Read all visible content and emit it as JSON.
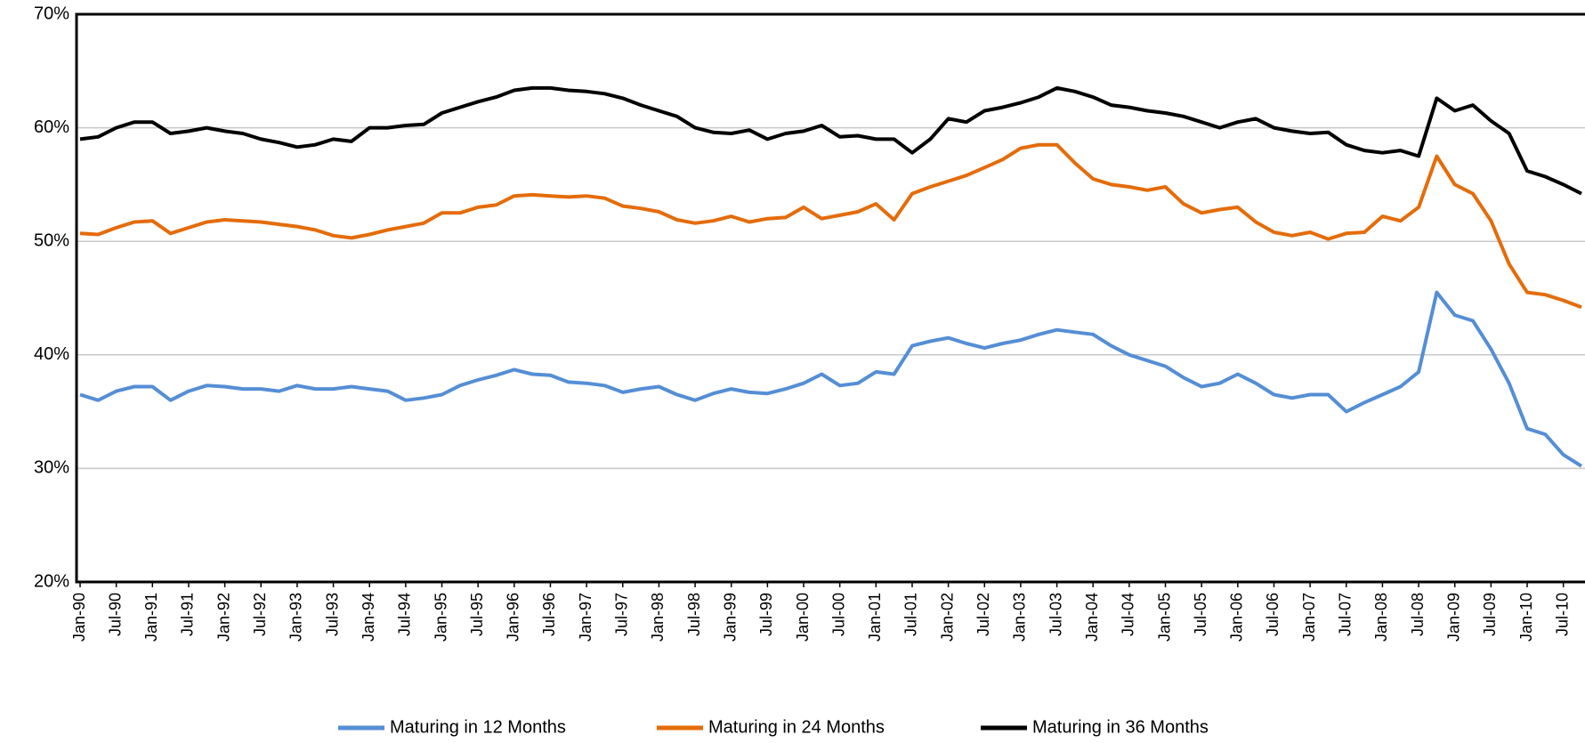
{
  "chart_data": {
    "type": "line",
    "categories": [
      "Jan-90",
      null,
      "Jul-90",
      null,
      "Jan-91",
      null,
      "Jul-91",
      null,
      "Jan-92",
      null,
      "Jul-92",
      null,
      "Jan-93",
      null,
      "Jul-93",
      null,
      "Jan-94",
      null,
      "Jul-94",
      null,
      "Jan-95",
      null,
      "Jul-95",
      null,
      "Jan-96",
      null,
      "Jul-96",
      null,
      "Jan-97",
      null,
      "Jul-97",
      null,
      "Jan-98",
      null,
      "Jul-98",
      null,
      "Jan-99",
      null,
      "Jul-99",
      null,
      "Jan-00",
      null,
      "Jul-00",
      null,
      "Jan-01",
      null,
      "Jul-01",
      null,
      "Jan-02",
      null,
      "Jul-02",
      null,
      "Jan-03",
      null,
      "Jul-03",
      null,
      "Jan-04",
      null,
      "Jul-04",
      null,
      "Jan-05",
      null,
      "Jul-05",
      null,
      "Jan-06",
      null,
      "Jul-06",
      null,
      "Jan-07",
      null,
      "Jul-07",
      null,
      "Jan-08",
      null,
      "Jul-08",
      null,
      "Jan-09",
      null,
      "Jul-09",
      null,
      "Jan-10",
      null,
      "Jul-10",
      null
    ],
    "series": [
      {
        "name": "Maturing in 12 Months",
        "color": "#558ed5",
        "values": [
          36.5,
          36,
          36.8,
          37.2,
          37.2,
          36,
          36.8,
          37.3,
          37.2,
          37,
          37,
          36.8,
          37.3,
          37,
          37,
          37.2,
          37,
          36.8,
          36,
          36.2,
          36.5,
          37.3,
          37.8,
          38.2,
          38.7,
          38.3,
          38.2,
          37.6,
          37.5,
          37.3,
          36.7,
          37,
          37.2,
          36.5,
          36,
          36.6,
          37,
          36.7,
          36.6,
          37,
          37.5,
          38.3,
          37.3,
          37.5,
          38.5,
          38.3,
          40.8,
          41.2,
          41.5,
          41,
          40.6,
          41,
          41.3,
          41.8,
          42.2,
          42,
          41.8,
          40.8,
          40,
          39.5,
          39,
          38,
          37.2,
          37.5,
          38.3,
          37.5,
          36.5,
          36.2,
          36.5,
          36.5,
          35,
          35.8,
          36.5,
          37.2,
          38.5,
          45.5,
          43.5,
          43,
          40.5,
          37.5,
          33.5,
          33,
          31.2,
          30.2
        ]
      },
      {
        "name": "Maturing in 24 Months",
        "color": "#e46c0a",
        "values": [
          50.7,
          50.6,
          51.2,
          51.7,
          51.8,
          50.7,
          51.2,
          51.7,
          51.9,
          51.8,
          51.7,
          51.5,
          51.3,
          51,
          50.5,
          50.3,
          50.6,
          51,
          51.3,
          51.6,
          52.5,
          52.5,
          53,
          53.2,
          54,
          54.1,
          54,
          53.9,
          54,
          53.8,
          53.1,
          52.9,
          52.6,
          51.9,
          51.6,
          51.8,
          52.2,
          51.7,
          52,
          52.1,
          53,
          52,
          52.3,
          52.6,
          53.3,
          51.9,
          54.2,
          54.8,
          55.3,
          55.8,
          56.5,
          57.2,
          58.2,
          58.5,
          58.5,
          56.9,
          55.5,
          55,
          54.8,
          54.5,
          54.8,
          53.3,
          52.5,
          52.8,
          53,
          51.7,
          50.8,
          50.5,
          50.8,
          50.2,
          50.7,
          50.8,
          52.2,
          51.8,
          53,
          57.5,
          55,
          54.2,
          51.8,
          48,
          45.5,
          45.3,
          44.8,
          44.2
        ]
      },
      {
        "name": "Maturing in 36 Months",
        "color": "#000000",
        "values": [
          59,
          59.2,
          60,
          60.5,
          60.5,
          59.5,
          59.7,
          60,
          59.7,
          59.5,
          59,
          58.7,
          58.3,
          58.5,
          59,
          58.8,
          60,
          60,
          60.2,
          60.3,
          61.3,
          61.8,
          62.3,
          62.7,
          63.3,
          63.5,
          63.5,
          63.3,
          63.2,
          63,
          62.6,
          62,
          61.5,
          61,
          60,
          59.6,
          59.5,
          59.8,
          59,
          59.5,
          59.7,
          60.2,
          59.2,
          59.3,
          59,
          59,
          57.8,
          59,
          60.8,
          60.5,
          61.5,
          61.8,
          62.2,
          62.7,
          63.5,
          63.2,
          62.7,
          62,
          61.8,
          61.5,
          61.3,
          61,
          60.5,
          60,
          60.5,
          60.8,
          60,
          59.7,
          59.5,
          59.6,
          58.5,
          58,
          57.8,
          58,
          57.5,
          62.6,
          61.5,
          62,
          60.6,
          59.5,
          56.2,
          55.7,
          55,
          54.2
        ]
      }
    ],
    "ylim": [
      20,
      70
    ],
    "yticks": [
      {
        "value": 20,
        "label": "20%"
      },
      {
        "value": 30,
        "label": "30%"
      },
      {
        "value": 40,
        "label": "40%"
      },
      {
        "value": 50,
        "label": "50%"
      },
      {
        "value": 60,
        "label": "60%"
      },
      {
        "value": 70,
        "label": "70%"
      }
    ],
    "grid": true,
    "legend": "bottom"
  }
}
